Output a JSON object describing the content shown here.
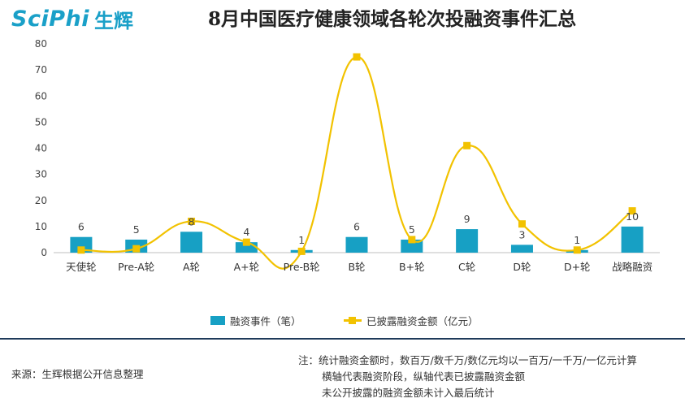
{
  "brand": {
    "logo_text": "SciPhi",
    "logo_cn": "生辉"
  },
  "title": "8月中国医疗健康领域各轮次投融资事件汇总",
  "colors": {
    "bar": "#17a0c4",
    "line": "#f2c200",
    "logo": "#1aa0c8",
    "divider": "#1f3a5a"
  },
  "chart_data": {
    "type": "bar",
    "title": "8月中国医疗健康领域各轮次投融资事件汇总",
    "categories": [
      "天使轮",
      "Pre-A轮",
      "A轮",
      "A+轮",
      "Pre-B轮",
      "B轮",
      "B+轮",
      "C轮",
      "D轮",
      "D+轮",
      "战略融资"
    ],
    "series": [
      {
        "name": "融资事件（笔）",
        "type": "bar",
        "values": [
          6,
          5,
          8,
          4,
          1,
          6,
          5,
          9,
          3,
          1,
          10
        ]
      },
      {
        "name": "已披露融资金额（亿元）",
        "type": "line",
        "smooth": true,
        "values": [
          1,
          1.5,
          12,
          4,
          0.5,
          75,
          5,
          41,
          11,
          1,
          16
        ]
      }
    ],
    "yticks": [
      "0",
      "10",
      "20",
      "30",
      "40",
      "50",
      "60",
      "70",
      "80"
    ],
    "ylim": [
      0,
      80
    ],
    "grid": false,
    "legend_position": "bottom"
  },
  "footer": {
    "source": "来源：生辉根据公开信息整理",
    "notes": [
      "注：统计融资金额时，数百万/数千万/数亿元均以一百万/一千万/一亿元计算",
      "横轴代表融资阶段，纵轴代表已披露融资金额",
      "未公开披露的融资金额未计入最后统计"
    ]
  }
}
